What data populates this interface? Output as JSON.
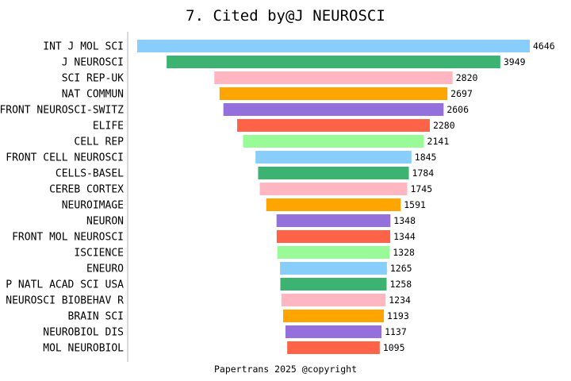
{
  "chart_data": {
    "type": "bar",
    "orientation": "horizontal-centered",
    "title": "7. Cited by@J NEUROSCI",
    "footer": "Papertrans 2025 @copyright",
    "categories": [
      "INT J MOL SCI",
      "J NEUROSCI",
      "SCI REP-UK",
      "NAT COMMUN",
      "FRONT NEUROSCI-SWITZ",
      "ELIFE",
      "CELL REP",
      "FRONT CELL NEUROSCI",
      "CELLS-BASEL",
      "CEREB CORTEX",
      "NEUROIMAGE",
      "NEURON",
      "FRONT MOL NEUROSCI",
      "ISCIENCE",
      "ENEURO",
      "P NATL ACAD SCI USA",
      "NEUROSCI BIOBEHAV R",
      "BRAIN SCI",
      "NEUROBIOL DIS",
      "MOL NEUROBIOL"
    ],
    "values": [
      4646,
      3949,
      2820,
      2697,
      2606,
      2280,
      2141,
      1845,
      1784,
      1745,
      1591,
      1348,
      1344,
      1328,
      1265,
      1258,
      1234,
      1193,
      1137,
      1095
    ],
    "colors": [
      "#87CEFA",
      "#3CB371",
      "#FFB6C1",
      "#FFA500",
      "#9370DB",
      "#FF6347",
      "#98FB98"
    ],
    "grid": false,
    "legend": "none"
  }
}
